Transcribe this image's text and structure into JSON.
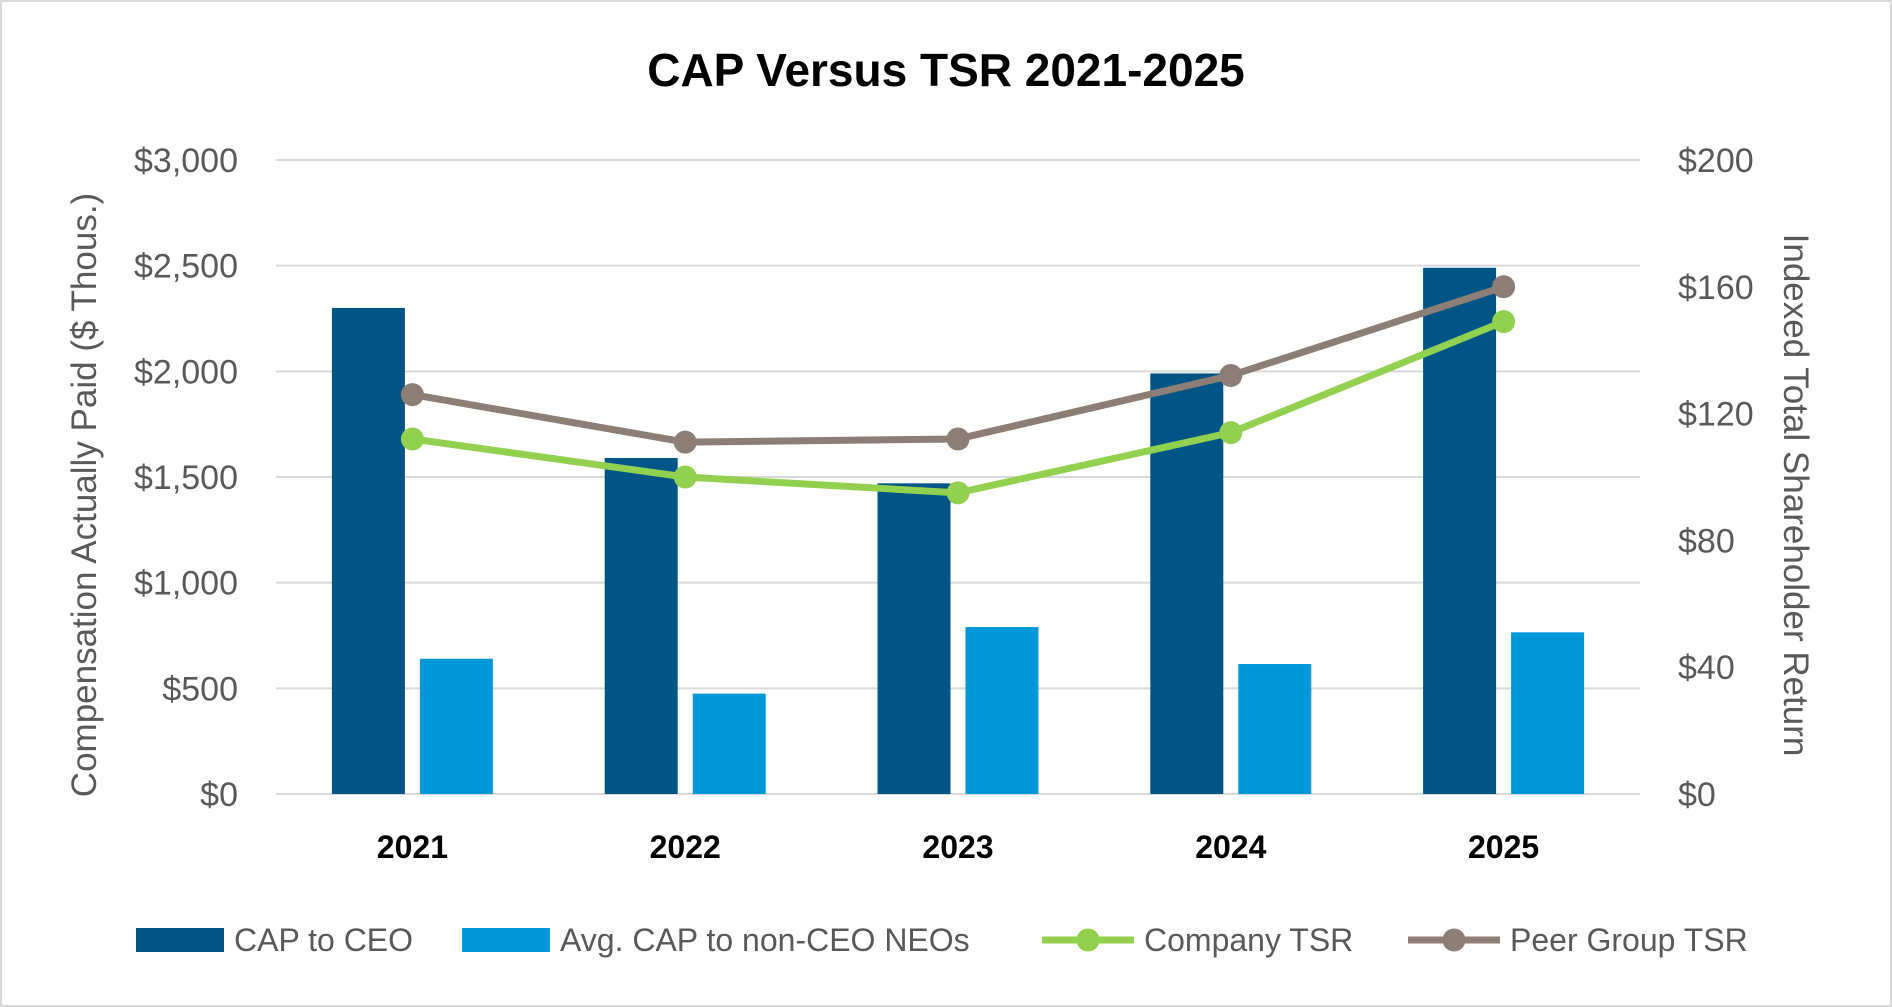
{
  "chart_data": {
    "type": "bar",
    "title": "CAP Versus TSR 2021-2025",
    "categories": [
      "2021",
      "2022",
      "2023",
      "2024",
      "2025"
    ],
    "ylabel": "Compensation Actually Paid ($ Thous.)",
    "ylabel_right": "Indexed Total Shareholder Return",
    "ylim": [
      0,
      3000
    ],
    "ylim_right": [
      0,
      200
    ],
    "yticks": [
      0,
      500,
      1000,
      1500,
      2000,
      2500,
      3000
    ],
    "yticks_right": [
      0,
      40,
      80,
      120,
      160,
      200
    ],
    "ytick_labels": [
      "$0",
      "$500",
      "$1,000",
      "$1,500",
      "$2,000",
      "$2,500",
      "$3,000"
    ],
    "ytick_labels_right": [
      "$0",
      "$40",
      "$80",
      "$120",
      "$160",
      "$200"
    ],
    "grid": true,
    "legend_position": "bottom",
    "series": [
      {
        "name": "CAP to CEO",
        "kind": "bar",
        "axis": "left",
        "color": "#005587",
        "values": [
          2300,
          1590,
          1470,
          1990,
          2490
        ]
      },
      {
        "name": "Avg. CAP to non-CEO NEOs",
        "kind": "bar",
        "axis": "left",
        "color": "#0097D9",
        "values": [
          640,
          475,
          790,
          615,
          765
        ]
      },
      {
        "name": "Company TSR",
        "kind": "line",
        "axis": "right",
        "color": "#92D050",
        "values": [
          112,
          100,
          95,
          114,
          149
        ]
      },
      {
        "name": "Peer Group TSR",
        "kind": "line",
        "axis": "right",
        "color": "#8C7E75",
        "values": [
          126,
          111,
          112,
          132,
          160
        ]
      }
    ]
  },
  "colors": {
    "grid": "#d9d9d9",
    "axis_text": "#595959"
  }
}
